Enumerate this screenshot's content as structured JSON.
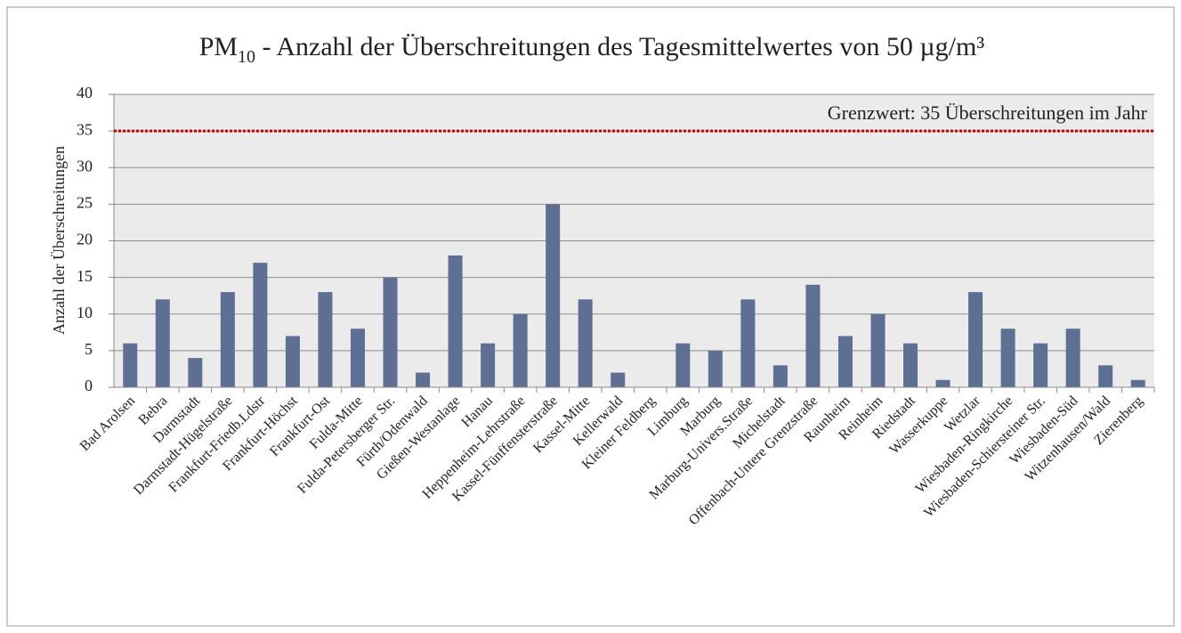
{
  "chart_data": {
    "type": "bar",
    "title": [
      "PM",
      "10",
      " - Anzahl der Überschreitungen des Tagesmittelwertes von 50 µg/m³"
    ],
    "y_label": "Anzahl der Überschreitungen",
    "categories": [
      "Bad Arolsen",
      "Bebra",
      "Darmstadt",
      "Darmstadt-Hügelstraße",
      "Frankfurt-Friedb.Ldstr",
      "Frankfurt-Höchst",
      "Frankfurt-Ost",
      "Fulda-Mitte",
      "Fulda-Petersberger Str.",
      "Fürth/Odenwald",
      "Gießen-Westanlage",
      "Hanau",
      "Heppenheim-Lehrstraße",
      "Kassel-Fünffensterstraße",
      "Kassel-Mitte",
      "Kellerwald",
      "Kleiner Feldberg",
      "Limburg",
      "Marburg",
      "Marburg-Univers.Straße",
      "Michelstadt",
      "Offenbach-Untere Grenzstraße",
      "Raunheim",
      "Reinheim",
      "Riedstadt",
      "Wasserkuppe",
      "Wetzlar",
      "Wiesbaden-Ringkirche",
      "Wiesbaden-Schiersteiner Str.",
      "Wiesbaden-Süd",
      "Witzenhausen/Wald",
      "Zierenberg"
    ],
    "values": [
      6,
      12,
      4,
      13,
      17,
      7,
      13,
      8,
      15,
      2,
      18,
      6,
      10,
      25,
      12,
      2,
      0,
      6,
      5,
      12,
      3,
      14,
      7,
      10,
      6,
      1,
      13,
      8,
      6,
      8,
      3,
      1
    ],
    "color": "#5f6f94",
    "ylim": [
      0,
      40
    ],
    "yticks": [
      0,
      5,
      10,
      15,
      20,
      25,
      30,
      35,
      40
    ],
    "grid": true,
    "reference_line": {
      "value": 35,
      "label": "Grenzwert: 35 Überschreitungen im Jahr",
      "color": "#c00000"
    }
  }
}
